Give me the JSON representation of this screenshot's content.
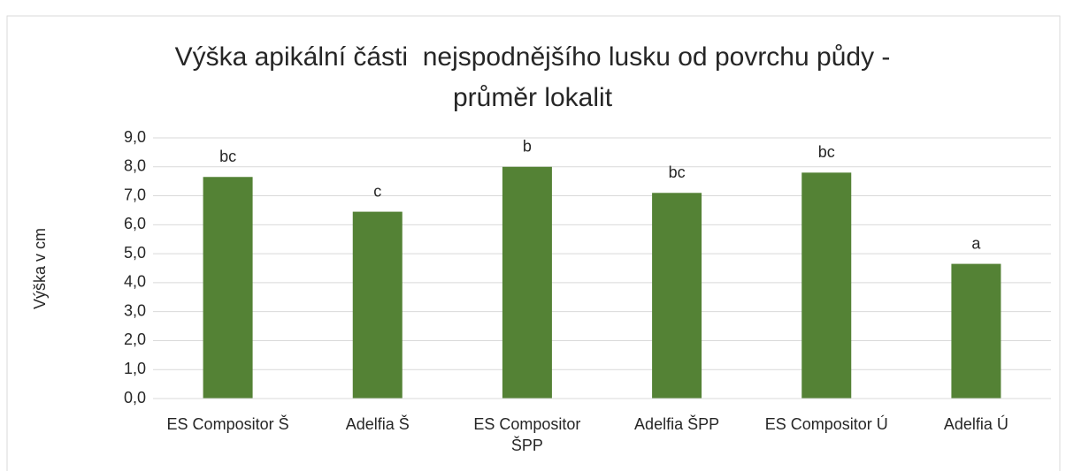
{
  "chart_data": {
    "type": "bar",
    "title": "Výška apikální části  nejspodnějšího lusku od povrchu půdy - průměr lokalit",
    "y_label": "Výška v cm",
    "categories": [
      "ES Compositor Š",
      "Adelfia Š",
      "ES Compositor ŠPP",
      "Adelfia ŠPP",
      "ES Compositor Ú",
      "Adelfia Ú"
    ],
    "values": [
      7.65,
      6.45,
      8.0,
      7.1,
      7.8,
      4.65
    ],
    "annotations": [
      "bc",
      "c",
      "b",
      "bc",
      "bc",
      "a"
    ],
    "color": "#548235",
    "ylim": [
      0,
      9
    ],
    "yticks": [
      {
        "value": 0,
        "label": "0,0"
      },
      {
        "value": 1,
        "label": "1,0"
      },
      {
        "value": 2,
        "label": "2,0"
      },
      {
        "value": 3,
        "label": "3,0"
      },
      {
        "value": 4,
        "label": "4,0"
      },
      {
        "value": 5,
        "label": "5,0"
      },
      {
        "value": 6,
        "label": "6,0"
      },
      {
        "value": 7,
        "label": "7,0"
      },
      {
        "value": 8,
        "label": "8,0"
      },
      {
        "value": 9,
        "label": "9,0"
      }
    ],
    "grid": true
  }
}
